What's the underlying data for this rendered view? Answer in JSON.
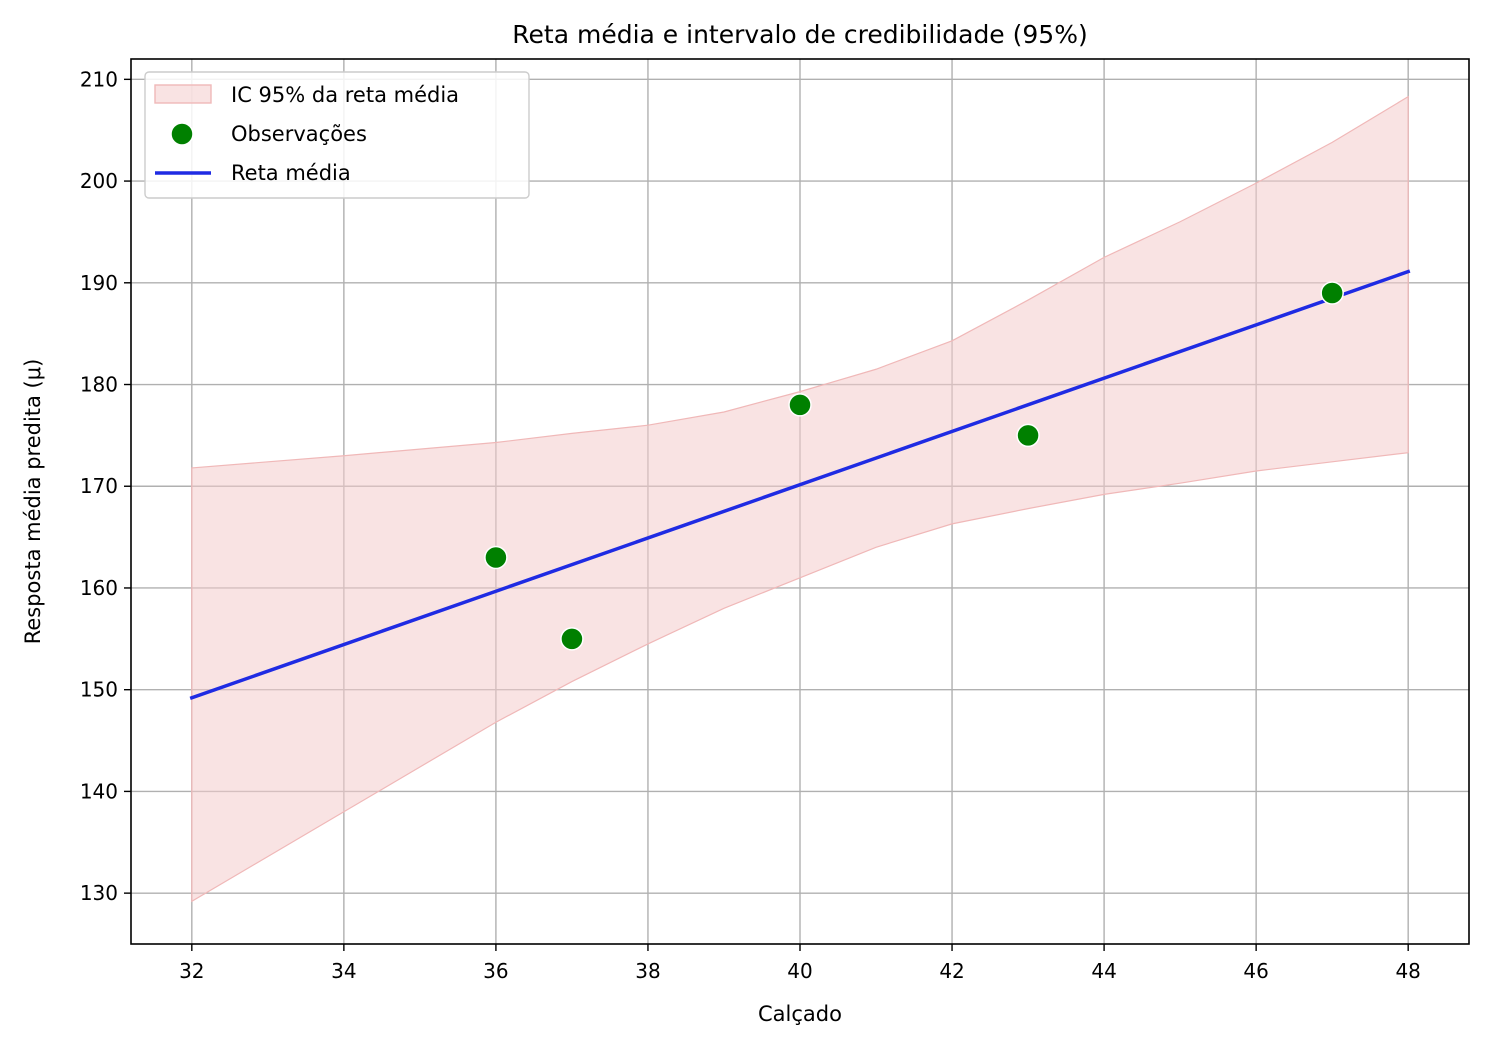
{
  "chart_data": {
    "type": "line",
    "title": "Reta média e intervalo de credibilidade (95%)",
    "xlabel": "Calçado",
    "ylabel": "Resposta média predita (μ)",
    "xlim": [
      31.2,
      48.8
    ],
    "ylim": [
      125,
      212
    ],
    "x_ticks": [
      32,
      34,
      36,
      38,
      40,
      42,
      44,
      46,
      48
    ],
    "y_ticks": [
      130,
      140,
      150,
      160,
      170,
      180,
      190,
      200,
      210
    ],
    "grid": true,
    "legend_position": "top-left",
    "series": [
      {
        "name": "IC 95% da reta média",
        "kind": "band",
        "color": "#f4cccc",
        "x": [
          32,
          34,
          36,
          37,
          38,
          39,
          40,
          41,
          42,
          43,
          44,
          45,
          46,
          47,
          48
        ],
        "lower": [
          129.2,
          138.0,
          146.8,
          150.8,
          154.5,
          158.0,
          161.0,
          164.0,
          166.3,
          167.8,
          169.2,
          170.3,
          171.5,
          172.4,
          173.3
        ],
        "upper": [
          171.8,
          173.0,
          174.3,
          175.2,
          176.0,
          177.3,
          179.3,
          181.5,
          184.3,
          188.3,
          192.5,
          196.0,
          199.8,
          203.8,
          208.3
        ]
      },
      {
        "name": "Observações",
        "kind": "scatter",
        "color": "#008000",
        "x": [
          36,
          37,
          40,
          43,
          47
        ],
        "y": [
          163,
          155,
          178,
          175,
          189
        ]
      },
      {
        "name": "Reta média",
        "kind": "line",
        "color": "#1f2be3",
        "x": [
          32,
          48
        ],
        "y": [
          149.2,
          191.1
        ]
      }
    ]
  }
}
